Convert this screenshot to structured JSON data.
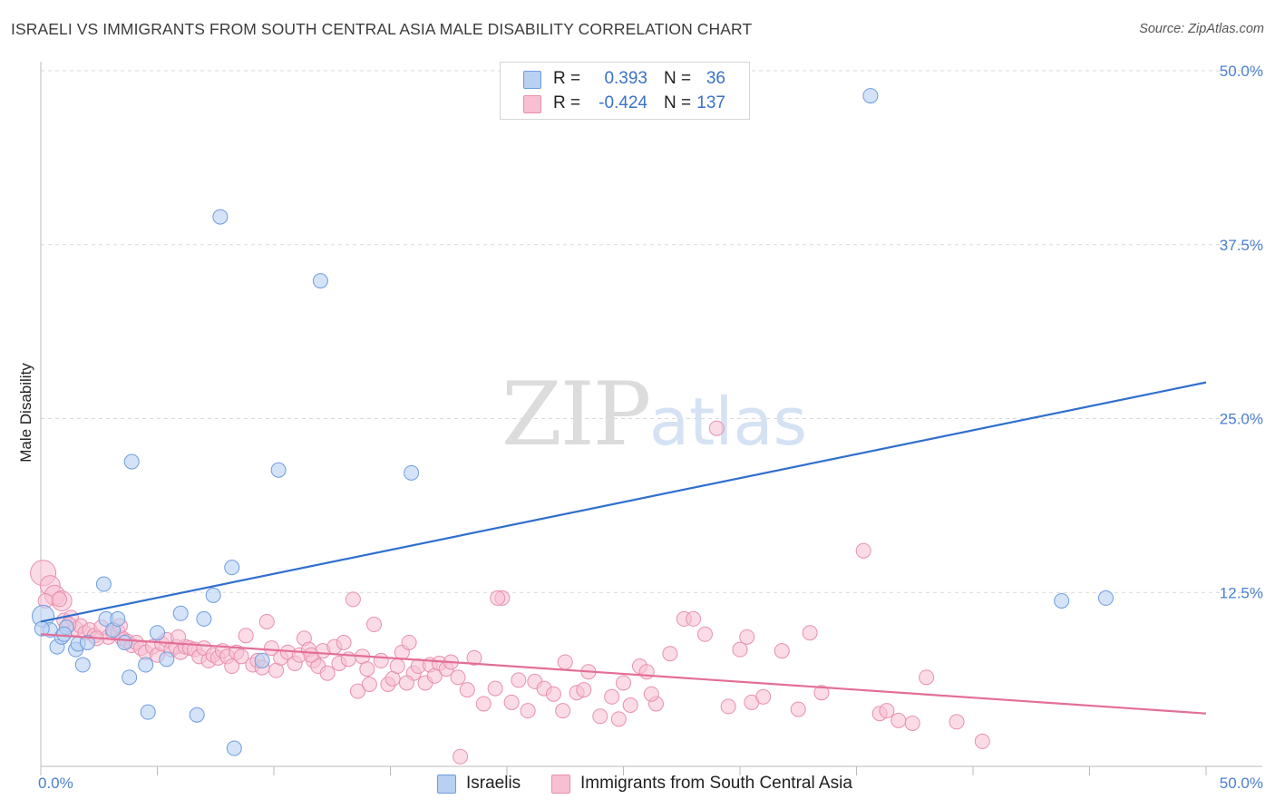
{
  "title": "ISRAELI VS IMMIGRANTS FROM SOUTH CENTRAL ASIA MALE DISABILITY CORRELATION CHART",
  "source": "Source: ZipAtlas.com",
  "watermark": {
    "zip": "ZIP",
    "atlas": "atlas"
  },
  "colors": {
    "blue_fill": "#b8d0f2",
    "blue_stroke": "#6e9de0",
    "blue_line": "#2f6fce",
    "pink_fill": "#f7bfd2",
    "pink_stroke": "#e88fb0",
    "pink_line": "#e36e97",
    "tick_label": "#4a7fd0",
    "grid": "#d9d9d9"
  },
  "legend": {
    "rows": [
      {
        "label": "R =",
        "r": "0.393",
        "n_label": "N =",
        "n": "36",
        "color": "#b8d0f2",
        "border": "#6e9de0"
      },
      {
        "label": "R =",
        "r": "-0.424",
        "n_label": "N =",
        "n": "137",
        "color": "#f7bfd2",
        "border": "#e88fb0"
      }
    ]
  },
  "bottom_legend": [
    {
      "label": "Israelis",
      "color": "#b8d0f2",
      "border": "#6e9de0"
    },
    {
      "label": "Immigrants from South Central Asia",
      "color": "#f7bfd2",
      "border": "#e88fb0"
    }
  ],
  "chart_data": {
    "type": "scatter",
    "title": "ISRAELI VS IMMIGRANTS FROM SOUTH CENTRAL ASIA MALE DISABILITY CORRELATION CHART",
    "xlabel": "",
    "ylabel": "Male Disability",
    "xlim": [
      0,
      50
    ],
    "ylim": [
      0,
      50
    ],
    "x_tick_labels": [
      "0.0%",
      "50.0%"
    ],
    "y_ticks": [
      12.5,
      25.0,
      37.5,
      50.0
    ],
    "y_tick_labels": [
      "12.5%",
      "25.0%",
      "37.5%",
      "50.0%"
    ],
    "grid": "horizontal dashed",
    "legend_position": "top-center",
    "series": [
      {
        "name": "Israelis",
        "r": 0.393,
        "n": 36,
        "trend": [
          [
            0,
            10.4
          ],
          [
            50,
            27.6
          ]
        ],
        "points": [
          [
            0.1,
            10.8
          ],
          [
            0.4,
            9.8
          ],
          [
            0.7,
            8.6
          ],
          [
            0.9,
            9.3
          ],
          [
            1.1,
            10.0
          ],
          [
            1.5,
            8.4
          ],
          [
            1.6,
            8.8
          ],
          [
            1.8,
            7.3
          ],
          [
            2.0,
            8.9
          ],
          [
            2.7,
            13.1
          ],
          [
            2.8,
            10.6
          ],
          [
            3.1,
            9.8
          ],
          [
            3.3,
            10.6
          ],
          [
            3.6,
            8.9
          ],
          [
            3.8,
            6.4
          ],
          [
            3.9,
            21.9
          ],
          [
            4.5,
            7.3
          ],
          [
            4.6,
            3.9
          ],
          [
            5.0,
            9.6
          ],
          [
            5.4,
            7.7
          ],
          [
            6.0,
            11.0
          ],
          [
            6.7,
            3.7
          ],
          [
            7.0,
            10.6
          ],
          [
            7.4,
            12.3
          ],
          [
            7.7,
            39.5
          ],
          [
            8.2,
            14.3
          ],
          [
            8.3,
            1.3
          ],
          [
            9.5,
            7.6
          ],
          [
            10.2,
            21.3
          ],
          [
            12.0,
            34.9
          ],
          [
            15.9,
            21.1
          ],
          [
            35.6,
            48.2
          ],
          [
            43.8,
            11.9
          ],
          [
            45.7,
            12.1
          ],
          [
            0.05,
            9.9
          ],
          [
            1.0,
            9.5
          ]
        ]
      },
      {
        "name": "Immigrants from South Central Asia",
        "r": -0.424,
        "n": 137,
        "trend": [
          [
            0,
            9.5
          ],
          [
            50,
            3.8
          ]
        ],
        "points": [
          [
            0.1,
            13.9
          ],
          [
            0.4,
            13.0
          ],
          [
            0.6,
            12.3
          ],
          [
            0.9,
            11.9
          ],
          [
            1.0,
            10.5
          ],
          [
            1.3,
            10.7
          ],
          [
            1.5,
            9.9
          ],
          [
            1.7,
            10.1
          ],
          [
            1.9,
            9.6
          ],
          [
            2.1,
            9.8
          ],
          [
            2.3,
            9.4
          ],
          [
            2.6,
            10.0
          ],
          [
            2.9,
            9.3
          ],
          [
            3.1,
            9.6
          ],
          [
            3.3,
            9.7
          ],
          [
            3.5,
            9.2
          ],
          [
            3.7,
            9.0
          ],
          [
            3.9,
            8.7
          ],
          [
            4.1,
            8.9
          ],
          [
            4.3,
            8.5
          ],
          [
            4.5,
            8.2
          ],
          [
            4.8,
            8.6
          ],
          [
            5.0,
            8.0
          ],
          [
            5.2,
            8.8
          ],
          [
            5.4,
            9.1
          ],
          [
            5.6,
            8.4
          ],
          [
            5.8,
            8.6
          ],
          [
            6.0,
            8.2
          ],
          [
            6.2,
            8.6
          ],
          [
            6.4,
            8.5
          ],
          [
            6.6,
            8.4
          ],
          [
            6.8,
            7.9
          ],
          [
            7.0,
            8.5
          ],
          [
            7.2,
            7.6
          ],
          [
            7.4,
            8.0
          ],
          [
            7.6,
            7.8
          ],
          [
            7.8,
            8.3
          ],
          [
            8.0,
            7.9
          ],
          [
            8.2,
            7.2
          ],
          [
            8.4,
            8.2
          ],
          [
            8.6,
            7.9
          ],
          [
            8.8,
            9.4
          ],
          [
            9.1,
            7.3
          ],
          [
            9.3,
            7.6
          ],
          [
            9.5,
            7.1
          ],
          [
            9.7,
            10.4
          ],
          [
            9.9,
            8.5
          ],
          [
            10.1,
            6.9
          ],
          [
            10.3,
            7.8
          ],
          [
            10.6,
            8.2
          ],
          [
            10.9,
            7.4
          ],
          [
            11.1,
            8.0
          ],
          [
            11.3,
            9.2
          ],
          [
            11.5,
            8.4
          ],
          [
            11.7,
            7.6
          ],
          [
            11.9,
            7.2
          ],
          [
            12.1,
            8.3
          ],
          [
            12.3,
            6.7
          ],
          [
            12.6,
            8.6
          ],
          [
            12.8,
            7.4
          ],
          [
            13.0,
            8.9
          ],
          [
            13.2,
            7.7
          ],
          [
            13.4,
            12.0
          ],
          [
            13.6,
            5.4
          ],
          [
            13.8,
            7.9
          ],
          [
            14.0,
            7.0
          ],
          [
            14.3,
            10.2
          ],
          [
            14.6,
            7.6
          ],
          [
            14.9,
            5.9
          ],
          [
            15.1,
            6.3
          ],
          [
            15.3,
            7.2
          ],
          [
            15.5,
            8.2
          ],
          [
            15.8,
            8.9
          ],
          [
            16.0,
            6.7
          ],
          [
            16.2,
            7.2
          ],
          [
            16.5,
            6.0
          ],
          [
            16.7,
            7.3
          ],
          [
            16.9,
            6.5
          ],
          [
            17.1,
            7.4
          ],
          [
            17.4,
            7.0
          ],
          [
            17.6,
            7.5
          ],
          [
            17.9,
            6.4
          ],
          [
            18.3,
            5.5
          ],
          [
            18.6,
            7.8
          ],
          [
            19.0,
            4.5
          ],
          [
            19.5,
            5.6
          ],
          [
            19.8,
            12.1
          ],
          [
            20.2,
            4.6
          ],
          [
            20.5,
            6.2
          ],
          [
            20.9,
            4.0
          ],
          [
            21.2,
            6.1
          ],
          [
            21.6,
            5.6
          ],
          [
            22.0,
            5.2
          ],
          [
            22.5,
            7.5
          ],
          [
            23.0,
            5.3
          ],
          [
            23.5,
            6.8
          ],
          [
            24.0,
            3.6
          ],
          [
            24.5,
            5.0
          ],
          [
            24.8,
            3.4
          ],
          [
            25.0,
            6.0
          ],
          [
            25.3,
            4.4
          ],
          [
            25.7,
            7.2
          ],
          [
            26.0,
            6.8
          ],
          [
            26.4,
            4.5
          ],
          [
            27.0,
            8.1
          ],
          [
            27.6,
            10.6
          ],
          [
            28.0,
            10.6
          ],
          [
            28.5,
            9.5
          ],
          [
            29.0,
            24.3
          ],
          [
            29.5,
            4.3
          ],
          [
            30.0,
            8.4
          ],
          [
            30.5,
            4.6
          ],
          [
            31.0,
            5.0
          ],
          [
            31.8,
            8.3
          ],
          [
            32.5,
            4.1
          ],
          [
            33.0,
            9.6
          ],
          [
            33.5,
            5.3
          ],
          [
            35.3,
            15.5
          ],
          [
            36.0,
            3.8
          ],
          [
            36.3,
            4.0
          ],
          [
            36.8,
            3.3
          ],
          [
            37.4,
            3.1
          ],
          [
            38.0,
            6.4
          ],
          [
            39.3,
            3.2
          ],
          [
            40.4,
            1.8
          ],
          [
            19.6,
            12.1
          ],
          [
            11.6,
            8.0
          ],
          [
            3.4,
            10.1
          ],
          [
            0.8,
            12.0
          ],
          [
            2.4,
            9.2
          ],
          [
            5.9,
            9.3
          ],
          [
            0.2,
            11.9
          ],
          [
            26.2,
            5.2
          ],
          [
            22.4,
            4.0
          ],
          [
            30.3,
            9.3
          ],
          [
            18.0,
            0.7
          ],
          [
            23.3,
            5.5
          ],
          [
            15.7,
            6.0
          ],
          [
            1.2,
            10.2
          ],
          [
            14.1,
            5.9
          ]
        ]
      }
    ]
  }
}
